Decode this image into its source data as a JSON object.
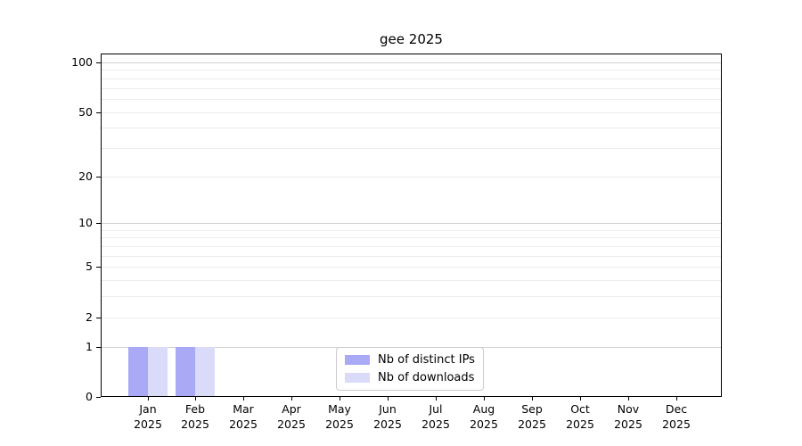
{
  "title": "gee 2025",
  "chart_data": {
    "type": "bar",
    "title": "gee 2025",
    "categories": [
      "Jan",
      "Feb",
      "Mar",
      "Apr",
      "May",
      "Jun",
      "Jul",
      "Aug",
      "Sep",
      "Oct",
      "Nov",
      "Dec"
    ],
    "year_label": "2025",
    "series": [
      {
        "name": "Nb of distinct IPs",
        "color": "#a9a9f6",
        "values": [
          1,
          1,
          0,
          0,
          0,
          0,
          0,
          0,
          0,
          0,
          0,
          0
        ]
      },
      {
        "name": "Nb of downloads",
        "color": "#dadaf9",
        "values": [
          1,
          1,
          0,
          0,
          0,
          0,
          0,
          0,
          0,
          0,
          0,
          0
        ]
      }
    ],
    "yscale": "log1p",
    "ylim": [
      0,
      113
    ],
    "y_tick_values": [
      0,
      1,
      2,
      5,
      10,
      20,
      50,
      100
    ],
    "y_tick_labels": [
      "0",
      "1",
      "2",
      "5",
      "10",
      "20",
      "50",
      "100"
    ],
    "y_major_gridlines": [
      1,
      10,
      100
    ],
    "y_minor_gridlines": [
      2,
      3,
      4,
      5,
      6,
      7,
      8,
      9,
      20,
      30,
      40,
      50,
      60,
      70,
      80,
      90
    ],
    "grid": "horizontal",
    "legend_position": "bottom-center",
    "colors": {
      "major_grid": "#d2d2d2",
      "minor_grid": "#ececec",
      "spine": "#000000",
      "background": "#ffffff"
    }
  }
}
